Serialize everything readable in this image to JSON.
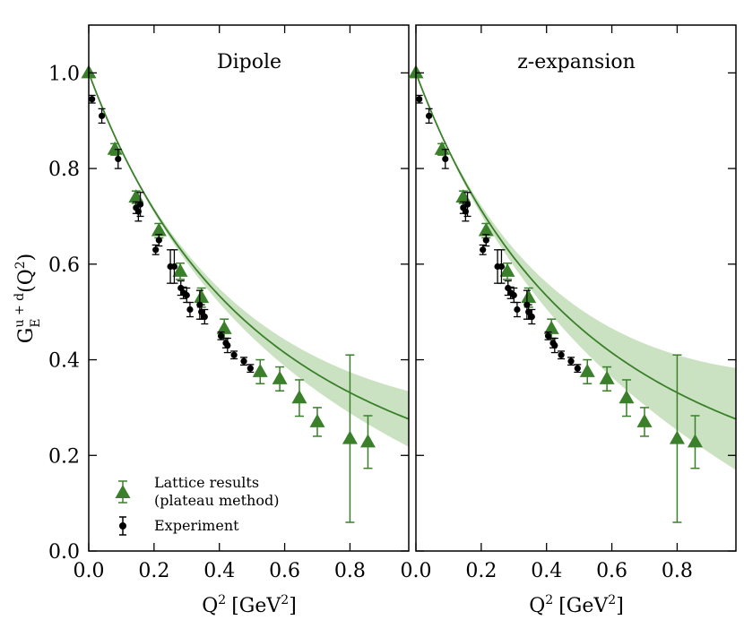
{
  "chart_data": {
    "type": "scatter",
    "ylabel": "G",
    "ylabel_sub": "E",
    "ylabel_sup": "u + d",
    "ylabel_arg": "(Q",
    "ylabel_arg_sup": "2",
    "ylabel_arg_close": ")",
    "xlabel": "Q",
    "xlabel_sup": "2",
    "xlabel_unit": "[GeV",
    "xlabel_unit_sup": "2",
    "xlabel_unit_close": "]",
    "xlim": [
      0.0,
      0.98
    ],
    "ylim": [
      0.0,
      1.1
    ],
    "xticks": [
      0.0,
      0.2,
      0.4,
      0.6,
      0.8
    ],
    "xtick_labels": [
      "0.0",
      "0.2",
      "0.4",
      "0.6",
      "0.8"
    ],
    "yticks": [
      0.0,
      0.2,
      0.4,
      0.6,
      0.8,
      1.0
    ],
    "ytick_labels": [
      "0.0",
      "0.2",
      "0.4",
      "0.6",
      "0.8",
      "1.0"
    ],
    "legend": {
      "position": "bottom-left",
      "entries": [
        {
          "label_line1": "Lattice results",
          "label_line2": "(plateau method)",
          "marker": "triangle",
          "color": "#3a7f2a"
        },
        {
          "label_line1": "Experiment",
          "marker": "circle",
          "color": "#000000"
        }
      ]
    },
    "colors": {
      "lattice": "#3a7f2a",
      "fit": "#3a7f2a",
      "band": "#b8d8ac",
      "experiment": "#000000"
    },
    "lattice": [
      {
        "x": 0.0,
        "y": 1.0,
        "err": 0.0
      },
      {
        "x": 0.08,
        "y": 0.84,
        "err": 0.012
      },
      {
        "x": 0.145,
        "y": 0.74,
        "err": 0.013
      },
      {
        "x": 0.215,
        "y": 0.67,
        "err": 0.015
      },
      {
        "x": 0.28,
        "y": 0.585,
        "err": 0.017
      },
      {
        "x": 0.345,
        "y": 0.53,
        "err": 0.02
      },
      {
        "x": 0.415,
        "y": 0.465,
        "err": 0.02
      },
      {
        "x": 0.525,
        "y": 0.375,
        "err": 0.025
      },
      {
        "x": 0.585,
        "y": 0.36,
        "err": 0.025
      },
      {
        "x": 0.645,
        "y": 0.32,
        "err": 0.038
      },
      {
        "x": 0.7,
        "y": 0.27,
        "err": 0.03
      },
      {
        "x": 0.8,
        "y": 0.235,
        "err": 0.175
      },
      {
        "x": 0.855,
        "y": 0.228,
        "err": 0.055
      }
    ],
    "experiment": [
      {
        "x": 0.01,
        "y": 0.945,
        "err": 0.008
      },
      {
        "x": 0.04,
        "y": 0.91,
        "err": 0.015
      },
      {
        "x": 0.09,
        "y": 0.82,
        "err": 0.02
      },
      {
        "x": 0.145,
        "y": 0.718,
        "err": 0.012
      },
      {
        "x": 0.152,
        "y": 0.71,
        "err": 0.02
      },
      {
        "x": 0.158,
        "y": 0.725,
        "err": 0.025
      },
      {
        "x": 0.205,
        "y": 0.63,
        "err": 0.01
      },
      {
        "x": 0.215,
        "y": 0.65,
        "err": 0.012
      },
      {
        "x": 0.25,
        "y": 0.595,
        "err": 0.035
      },
      {
        "x": 0.262,
        "y": 0.595,
        "err": 0.035
      },
      {
        "x": 0.282,
        "y": 0.55,
        "err": 0.015
      },
      {
        "x": 0.29,
        "y": 0.54,
        "err": 0.012
      },
      {
        "x": 0.3,
        "y": 0.535,
        "err": 0.015
      },
      {
        "x": 0.31,
        "y": 0.505,
        "err": 0.015
      },
      {
        "x": 0.34,
        "y": 0.515,
        "err": 0.03
      },
      {
        "x": 0.345,
        "y": 0.5,
        "err": 0.015
      },
      {
        "x": 0.355,
        "y": 0.49,
        "err": 0.015
      },
      {
        "x": 0.405,
        "y": 0.45,
        "err": 0.008
      },
      {
        "x": 0.42,
        "y": 0.435,
        "err": 0.01
      },
      {
        "x": 0.425,
        "y": 0.43,
        "err": 0.015
      },
      {
        "x": 0.445,
        "y": 0.41,
        "err": 0.008
      },
      {
        "x": 0.475,
        "y": 0.397,
        "err": 0.008
      },
      {
        "x": 0.495,
        "y": 0.382,
        "err": 0.008
      }
    ],
    "panels": [
      {
        "title": "Dipole",
        "fit": "dipole",
        "M2": 1.085,
        "band_coeff": 0.06
      },
      {
        "title": "z-expansion",
        "fit": "zexp",
        "M2": 1.085,
        "band_coeff": 0.11
      }
    ]
  }
}
